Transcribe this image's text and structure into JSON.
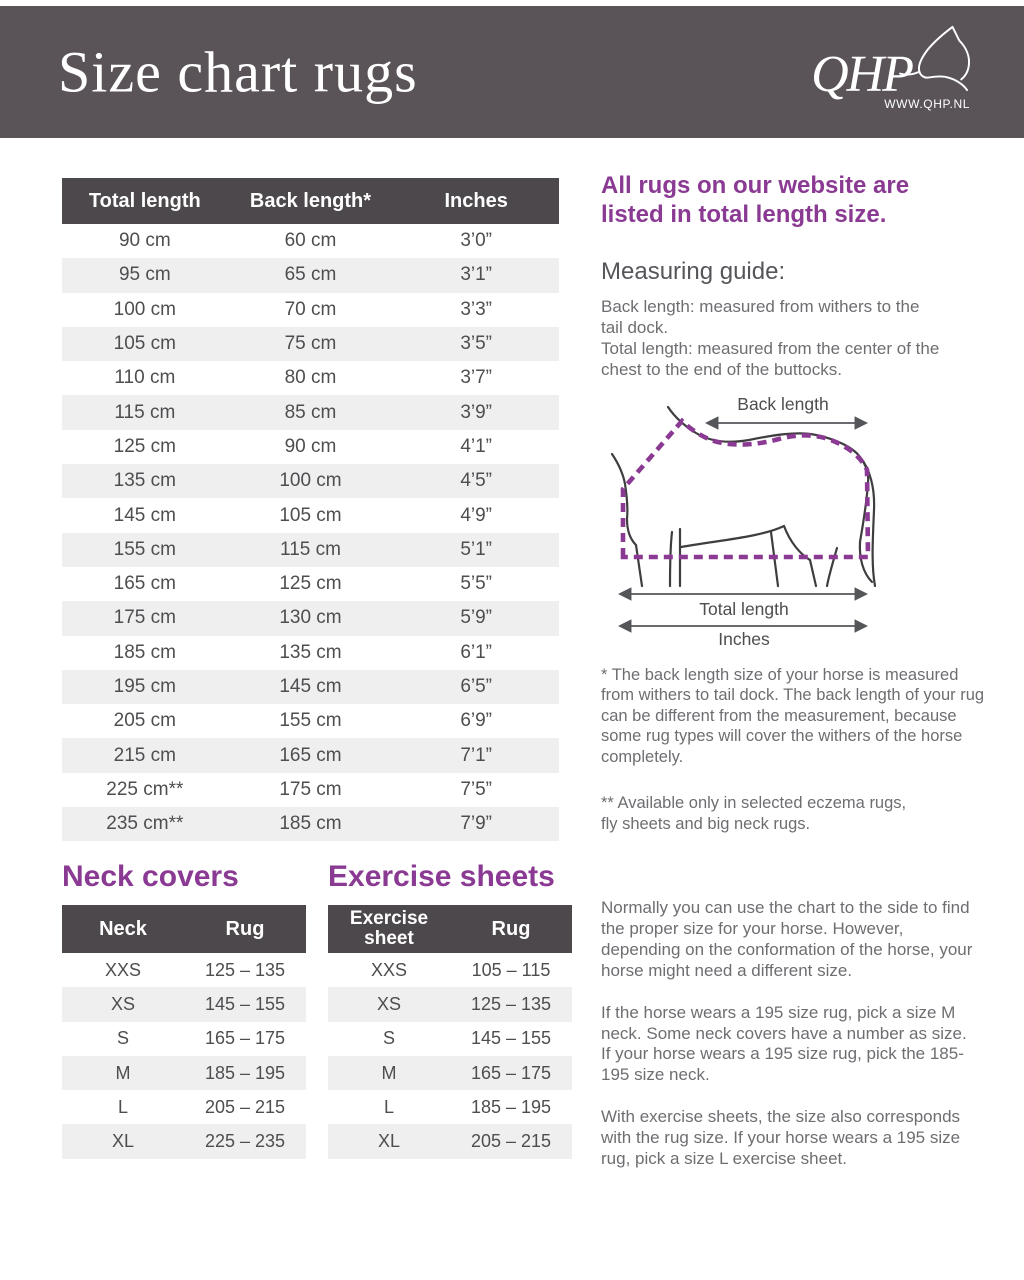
{
  "header": {
    "title": "Size chart rugs",
    "logo_text": "QHP",
    "logo_url": "WWW.QHP.NL"
  },
  "main_table": {
    "columns": [
      "Total length",
      "Back length*",
      "Inches"
    ],
    "rows": [
      [
        "90 cm",
        "60 cm",
        "3’0”"
      ],
      [
        "95 cm",
        "65 cm",
        "3’1”"
      ],
      [
        "100 cm",
        "70 cm",
        "3’3”"
      ],
      [
        "105 cm",
        "75 cm",
        "3’5”"
      ],
      [
        "110 cm",
        "80 cm",
        "3’7”"
      ],
      [
        "115 cm",
        "85 cm",
        "3’9”"
      ],
      [
        "125 cm",
        "90 cm",
        "4’1”"
      ],
      [
        "135 cm",
        "100 cm",
        "4’5”"
      ],
      [
        "145 cm",
        "105 cm",
        "4’9”"
      ],
      [
        "155 cm",
        "115 cm",
        "5’1”"
      ],
      [
        "165 cm",
        "125 cm",
        "5’5”"
      ],
      [
        "175 cm",
        "130 cm",
        "5’9”"
      ],
      [
        "185 cm",
        "135 cm",
        "6’1”"
      ],
      [
        "195 cm",
        "145 cm",
        "6’5”"
      ],
      [
        "205 cm",
        "155 cm",
        "6’9”"
      ],
      [
        "215 cm",
        "165 cm",
        "7’1”"
      ],
      [
        "225 cm**",
        "175 cm",
        "7’5”"
      ],
      [
        "235 cm**",
        "185 cm",
        "7’9”"
      ]
    ]
  },
  "sidebar": {
    "intro_heading": "All rugs on our website are listed in total length size.",
    "guide_title": "Measuring guide:",
    "guide_back": "Back length: measured from withers to the tail dock.",
    "guide_total": "Total length: measured from the center of the chest to the end of the buttocks.",
    "diagram": {
      "back_length": "Back length",
      "total_length": "Total length",
      "inches": "Inches"
    },
    "footnote_back": "* The back length size of your horse is measured from withers to tail dock. The back length of your rug can be different from the measurement, because some rug types will cover the withers of the horse completely.",
    "footnote_availability_line1": "** Available only in selected eczema rugs,",
    "footnote_availability_line2": "fly sheets and big neck rugs."
  },
  "neck_covers": {
    "title": "Neck covers",
    "columns": [
      "Neck",
      "Rug"
    ],
    "rows": [
      [
        "XXS",
        "125 – 135"
      ],
      [
        "XS",
        "145 – 155"
      ],
      [
        "S",
        "165 – 175"
      ],
      [
        "M",
        "185 – 195"
      ],
      [
        "L",
        "205 – 215"
      ],
      [
        "XL",
        "225 – 235"
      ]
    ]
  },
  "exercise_sheets": {
    "title": "Exercise sheets",
    "columns": [
      "Exercise sheet",
      "Rug"
    ],
    "rows": [
      [
        "XXS",
        "105 – 115"
      ],
      [
        "XS",
        "125 – 135"
      ],
      [
        "S",
        "145 – 155"
      ],
      [
        "M",
        "165 – 175"
      ],
      [
        "L",
        "185 – 195"
      ],
      [
        "XL",
        "205 – 215"
      ]
    ]
  },
  "notes": {
    "general": "Normally you can use the chart to the side to find the proper size for your horse.  However, depending on the conformation of the horse, your horse might need a different size.",
    "neck": "If the horse wears a 195 size rug, pick a size M neck. Some neck covers have a number as size. If your horse wears a 195 size rug, pick the 185-195 size neck.",
    "exercise": "With exercise sheets, the size also corresponds with the rug size. If your horse wears a 195 size rug, pick a size L exercise sheet."
  },
  "colors": {
    "banner_bg": "#5a5458",
    "table_header_bg": "#4d484b",
    "accent_purple": "#8a3a92",
    "row_stripe": "#efeff0",
    "body_text": "#6d6e71",
    "cell_text": "#4d4e50"
  }
}
